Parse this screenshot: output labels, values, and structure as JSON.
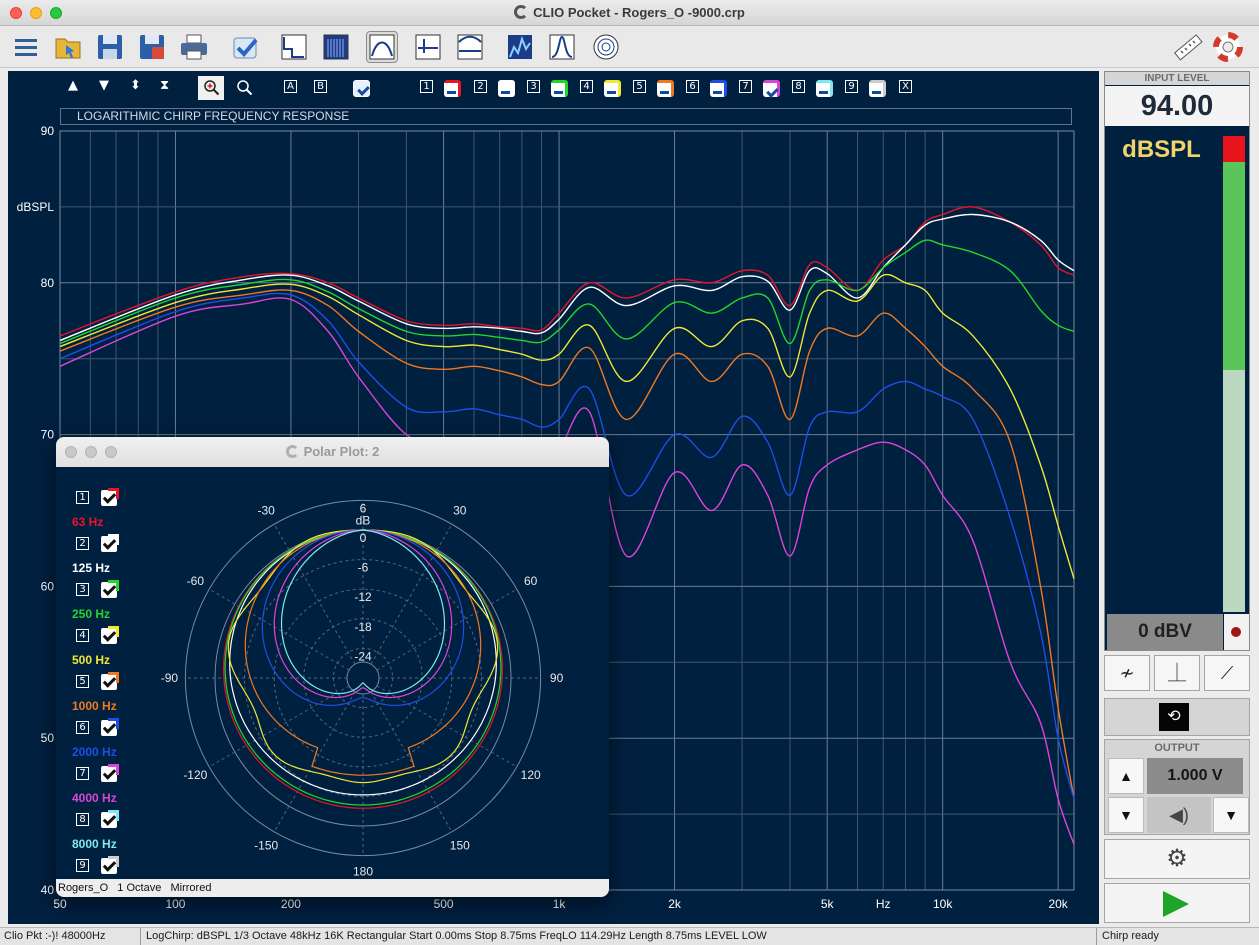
{
  "window": {
    "title": "CLIO Pocket - Rogers_O -9000.crp"
  },
  "toolbar": {
    "left_icons": [
      "menu-icon",
      "open-folder-icon",
      "save-icon",
      "save-as-icon",
      "print-icon",
      "checkmark-icon",
      "graph-step-icon",
      "waterfall-icon",
      "frequency-response-icon",
      "impulse-icon",
      "time-window-icon",
      "spectrogram-icon",
      "wavelet-icon",
      "polar-icon"
    ],
    "right_icons": [
      "ruler-icon",
      "lifebuoy-icon"
    ]
  },
  "graph": {
    "heading": "LOGARITHMIC CHIRP FREQUENCY RESPONSE",
    "y_unit": "dBSPL",
    "x_unit": "Hz",
    "y_ticks": [
      "90",
      "80",
      "70",
      "60",
      "50",
      "40"
    ],
    "x_ticks": [
      "50",
      "100",
      "200",
      "500",
      "1k",
      "2k",
      "5k",
      "10k",
      "20k"
    ],
    "toolbar_glyphs": {
      "up": "▲",
      "down": "▼",
      "updown": "⬍",
      "fit": "⧗",
      "zoom_in": "🔍",
      "zoom_out": "🔍",
      "a": "A",
      "b": "B",
      "close": "X"
    },
    "channel_labels": [
      "1",
      "2",
      "3",
      "4",
      "5",
      "6",
      "7",
      "8",
      "9"
    ],
    "accent_colors": {
      "background": "#002040",
      "grid": "#5a6a80"
    }
  },
  "chart_data": {
    "type": "line",
    "title": "LOGARITHMIC CHIRP FREQUENCY RESPONSE",
    "xlabel": "Hz",
    "ylabel": "dBSPL",
    "xscale": "log",
    "xlim": [
      50,
      22000
    ],
    "ylim": [
      40,
      90
    ],
    "x": [
      50,
      100,
      150,
      200,
      250,
      300,
      400,
      500,
      600,
      700,
      800,
      900,
      1000,
      1200,
      1500,
      2000,
      2500,
      3000,
      3500,
      4000,
      4500,
      5000,
      6000,
      7000,
      8000,
      9000,
      10000,
      12000,
      15000,
      18000,
      20000,
      22000
    ],
    "series": [
      {
        "name": "1",
        "color": "#e8142a",
        "values": [
          76.5,
          79.4,
          80.4,
          80.6,
          80.0,
          79.0,
          77.5,
          77.2,
          77.3,
          77.1,
          77.0,
          76.9,
          78.0,
          80.0,
          79.0,
          80.2,
          80.0,
          80.8,
          80.5,
          78.5,
          81.2,
          81.0,
          79.5,
          81.5,
          82.5,
          84.0,
          84.5,
          85.0,
          84.0,
          82.5,
          81.0,
          80.5
        ]
      },
      {
        "name": "2",
        "color": "#ffffff",
        "values": [
          76.2,
          79.2,
          80.2,
          80.5,
          79.8,
          78.8,
          77.3,
          77.0,
          77.1,
          77.0,
          76.8,
          76.7,
          77.6,
          79.7,
          78.5,
          79.8,
          79.5,
          80.4,
          80.1,
          78.2,
          80.8,
          80.6,
          79.0,
          81.0,
          82.5,
          83.8,
          84.2,
          84.5,
          84.0,
          82.8,
          81.5,
          80.8
        ]
      },
      {
        "name": "3",
        "color": "#22d62a",
        "values": [
          76.0,
          79.0,
          79.9,
          80.2,
          79.4,
          78.3,
          76.8,
          76.5,
          76.6,
          76.4,
          76.2,
          76.1,
          76.9,
          78.6,
          76.3,
          78.7,
          78.0,
          79.0,
          79.0,
          76.0,
          79.5,
          80.2,
          79.5,
          81.0,
          82.0,
          82.8,
          82.5,
          82.0,
          80.8,
          78.2,
          77.2,
          76.8
        ]
      },
      {
        "name": "4",
        "color": "#f0e832",
        "values": [
          75.8,
          78.7,
          79.6,
          79.9,
          79.1,
          77.9,
          76.2,
          75.8,
          75.9,
          75.6,
          75.3,
          74.9,
          75.3,
          77.2,
          73.5,
          77.0,
          75.8,
          77.5,
          77.0,
          73.8,
          78.0,
          79.5,
          78.8,
          80.5,
          80.0,
          79.5,
          78.0,
          76.5,
          73.0,
          68.0,
          64.0,
          60.5
        ]
      },
      {
        "name": "5",
        "color": "#f07820",
        "values": [
          75.5,
          78.4,
          79.2,
          79.5,
          78.5,
          76.8,
          74.7,
          74.3,
          74.5,
          74.2,
          73.8,
          73.3,
          73.5,
          75.7,
          71.0,
          75.3,
          73.5,
          75.3,
          74.5,
          71.0,
          75.5,
          77.0,
          76.5,
          78.0,
          77.0,
          75.8,
          74.5,
          73.0,
          69.5,
          60.0,
          52.0,
          46.0
        ]
      },
      {
        "name": "6",
        "color": "#1e4ee8",
        "values": [
          75.0,
          78.1,
          79.0,
          79.2,
          77.5,
          74.8,
          71.8,
          71.5,
          71.7,
          71.3,
          71.0,
          70.5,
          71.0,
          73.0,
          66.0,
          70.0,
          68.5,
          71.2,
          69.5,
          66.0,
          70.5,
          71.5,
          71.5,
          73.0,
          73.5,
          73.0,
          72.5,
          71.0,
          64.5,
          57.0,
          50.0,
          46.0
        ]
      },
      {
        "name": "7",
        "color": "#dc44d8",
        "values": [
          74.5,
          77.8,
          78.6,
          78.9,
          76.8,
          73.8,
          70.0,
          69.5,
          69.7,
          69.3,
          69.0,
          68.5,
          69.0,
          71.5,
          62.0,
          67.5,
          65.0,
          68.0,
          66.0,
          62.0,
          66.5,
          68.0,
          69.0,
          69.5,
          69.0,
          68.0,
          66.0,
          63.0,
          55.0,
          51.0,
          46.0,
          43.0
        ]
      }
    ]
  },
  "input_level": {
    "title": "INPUT LEVEL",
    "value": "94.00",
    "unit": "dBSPL",
    "meter_fraction": 0.49,
    "gain": "0 dBV"
  },
  "mode_buttons": [
    {
      "name": "sweep-mode",
      "glyph": "≁"
    },
    {
      "name": "impulse-mode",
      "glyph": "⏊"
    },
    {
      "name": "slope-mode",
      "glyph": "⟋"
    }
  ],
  "loop_glyph": "⟲",
  "output": {
    "title": "OUTPUT",
    "value": "1.000 V",
    "up": "▲",
    "down": "▼",
    "speaker_glyph": "◀)"
  },
  "settings_glyph": "⚙",
  "statusbar": {
    "left": "Clio Pkt :-)! 48000Hz",
    "middle": "LogChirp:  dBSPL  1/3 Octave  48kHz  16K  Rectangular  Start 0.00ms   Stop 8.75ms   FreqLO 114.29Hz   Length 8.75ms   LEVEL LOW",
    "right": "Chirp ready"
  },
  "polar": {
    "title": "Polar Plot: 2",
    "footer": "Rogers_O   1 Octave   Mirrored",
    "db_label": "dB",
    "ring_labels": [
      "6",
      "0",
      "-6",
      "-12",
      "-18",
      "-24"
    ],
    "angle_labels": [
      "-30",
      "30",
      "-60",
      "60",
      "-90",
      "90",
      "-120",
      "120",
      "-150",
      "150",
      "180"
    ],
    "legend": [
      {
        "num": "1",
        "label": "63 Hz",
        "color": "#e8142a"
      },
      {
        "num": "2",
        "label": "125 Hz",
        "color": "#ffffff"
      },
      {
        "num": "3",
        "label": "250 Hz",
        "color": "#22d62a"
      },
      {
        "num": "4",
        "label": "500 Hz",
        "color": "#f0e832"
      },
      {
        "num": "5",
        "label": "1000 Hz",
        "color": "#f07820"
      },
      {
        "num": "6",
        "label": "2000 Hz",
        "color": "#1e4ee8"
      },
      {
        "num": "7",
        "label": "4000 Hz",
        "color": "#dc44d8"
      },
      {
        "num": "8",
        "label": "8000 Hz",
        "color": "#7fe8f0"
      },
      {
        "num": "9",
        "label": "",
        "color": "#cccccc"
      }
    ]
  }
}
